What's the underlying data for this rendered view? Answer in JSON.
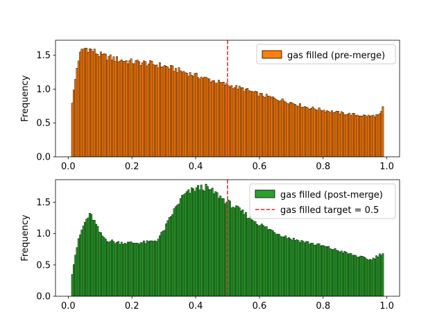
{
  "chart_data": [
    {
      "type": "bar",
      "title": "",
      "xlabel": "",
      "ylabel": "Frequency",
      "xlim": [
        -0.04,
        1.04
      ],
      "ylim": [
        0,
        1.72
      ],
      "xticks": [
        "0.0",
        "0.2",
        "0.4",
        "0.6",
        "0.8",
        "1.0"
      ],
      "yticks": [
        "0.0",
        "0.5",
        "1.0",
        "1.5"
      ],
      "grid": false,
      "legend_position": "top-right",
      "bins": {
        "start": 0.01,
        "end": 0.99,
        "count": 196
      },
      "series": [
        {
          "name": "gas filled (pre-merge)",
          "color": "#ff7f0e",
          "edgecolor": "#000000",
          "bin_centers": [
            0.01,
            0.02,
            0.03,
            0.04,
            0.05,
            0.06,
            0.08,
            0.1,
            0.15,
            0.2,
            0.25,
            0.3,
            0.35,
            0.4,
            0.45,
            0.5,
            0.55,
            0.6,
            0.65,
            0.7,
            0.75,
            0.8,
            0.85,
            0.9,
            0.95,
            0.98,
            0.99
          ],
          "values": [
            0.73,
            1.05,
            1.4,
            1.55,
            1.6,
            1.6,
            1.56,
            1.5,
            1.44,
            1.4,
            1.38,
            1.34,
            1.27,
            1.2,
            1.13,
            1.06,
            1.0,
            0.92,
            0.86,
            0.8,
            0.73,
            0.69,
            0.65,
            0.62,
            0.6,
            0.62,
            0.76
          ]
        }
      ]
    },
    {
      "type": "bar",
      "title": "",
      "xlabel": "",
      "ylabel": "Frequency",
      "xlim": [
        -0.04,
        1.04
      ],
      "ylim": [
        0,
        1.86
      ],
      "xticks": [
        "0.0",
        "0.2",
        "0.4",
        "0.6",
        "0.8",
        "1.0"
      ],
      "yticks": [
        "0.0",
        "0.5",
        "1.0",
        "1.5"
      ],
      "grid": false,
      "legend_position": "top-right",
      "bins": {
        "start": 0.01,
        "end": 0.99,
        "count": 196
      },
      "series": [
        {
          "name": "gas filled (post-merge)",
          "color": "#2ca02c",
          "edgecolor": "#000000",
          "bin_centers": [
            0.01,
            0.02,
            0.03,
            0.04,
            0.05,
            0.06,
            0.07,
            0.08,
            0.1,
            0.12,
            0.15,
            0.2,
            0.25,
            0.28,
            0.3,
            0.33,
            0.36,
            0.4,
            0.43,
            0.46,
            0.5,
            0.55,
            0.6,
            0.65,
            0.7,
            0.8,
            0.9,
            0.95,
            0.99
          ],
          "values": [
            0.28,
            0.6,
            0.85,
            1.02,
            1.15,
            1.25,
            1.3,
            1.22,
            1.0,
            0.9,
            0.86,
            0.85,
            0.86,
            0.9,
            1.05,
            1.35,
            1.6,
            1.72,
            1.74,
            1.65,
            1.5,
            1.33,
            1.15,
            1.02,
            0.92,
            0.8,
            0.65,
            0.58,
            0.7
          ]
        },
        {
          "name": "gas filled target = 0.5",
          "type": "vline",
          "x": 0.5,
          "color": "#d62728",
          "linestyle": "dashed"
        }
      ]
    }
  ]
}
